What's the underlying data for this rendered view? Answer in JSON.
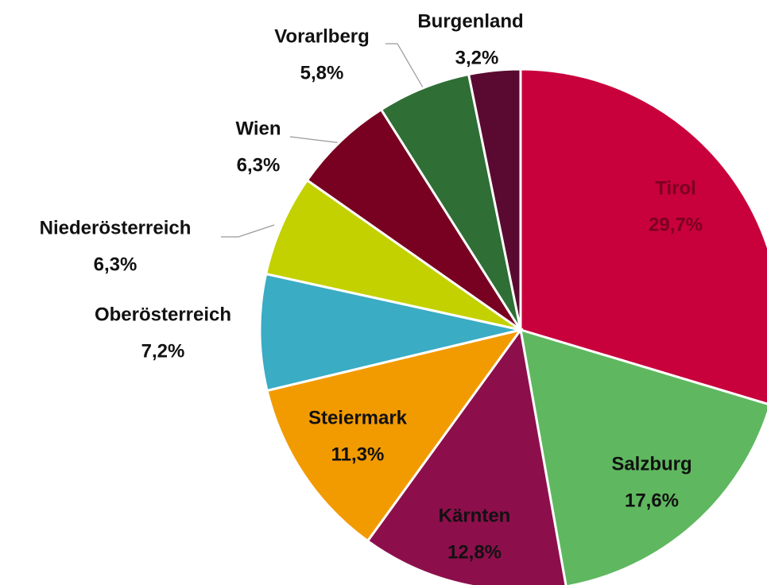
{
  "chart_data": {
    "type": "pie",
    "categories": [
      "Tirol",
      "Salzburg",
      "Kärnten",
      "Steiermark",
      "Oberösterreich",
      "Niederösterreich",
      "Wien",
      "Vorarlberg",
      "Burgenland"
    ],
    "values": [
      29.7,
      17.6,
      12.8,
      11.3,
      7.2,
      6.3,
      6.3,
      5.8,
      3.2
    ],
    "value_labels": [
      "29,7%",
      "17,6%",
      "12,8%",
      "11,3%",
      "7,2%",
      "6,3%",
      "6,3%",
      "5,8%",
      "3,2%"
    ],
    "colors": [
      "#c8003c",
      "#5fb85f",
      "#8c0f4b",
      "#f29b00",
      "#3aacc4",
      "#c3d100",
      "#780020",
      "#2f6e35",
      "#5a0a30"
    ]
  }
}
